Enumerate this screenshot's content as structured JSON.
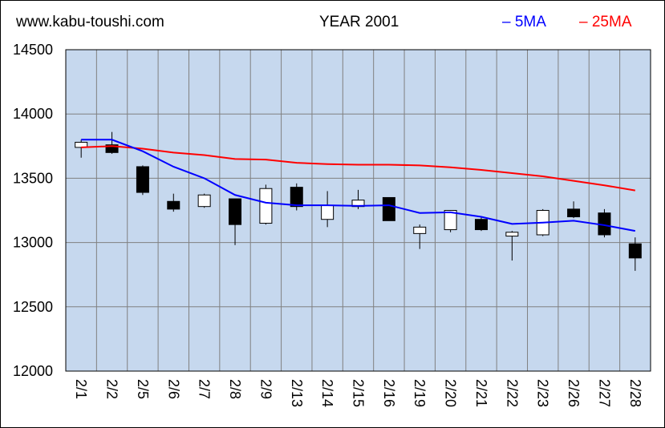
{
  "site_label": "www.kabu-toushi.com",
  "title": "YEAR 2001",
  "legend": {
    "ma5": {
      "label": "5MA",
      "color": "#0000ff"
    },
    "ma25": {
      "label": "25MA",
      "color": "#ff0000"
    }
  },
  "colors": {
    "plot_bg": "#c6d8ee",
    "grid": "#808080",
    "candle_up": "#ffffff",
    "candle_down": "#000000"
  },
  "chart_data": {
    "type": "candlestick",
    "title": "YEAR 2001",
    "categories": [
      "2/1",
      "2/2",
      "2/5",
      "2/6",
      "2/7",
      "2/8",
      "2/9",
      "2/13",
      "2/14",
      "2/15",
      "2/16",
      "2/19",
      "2/20",
      "2/21",
      "2/22",
      "2/23",
      "2/26",
      "2/27",
      "2/28"
    ],
    "ylim": [
      12000,
      14500
    ],
    "yticks": [
      12000,
      12500,
      13000,
      13500,
      14000,
      14500
    ],
    "grid": true,
    "candles": [
      {
        "open": 13740,
        "close": 13780,
        "high": 13800,
        "low": 13660
      },
      {
        "open": 13760,
        "close": 13700,
        "high": 13860,
        "low": 13690
      },
      {
        "open": 13590,
        "close": 13390,
        "high": 13600,
        "low": 13370
      },
      {
        "open": 13320,
        "close": 13260,
        "high": 13380,
        "low": 13240
      },
      {
        "open": 13280,
        "close": 13370,
        "high": 13380,
        "low": 13270
      },
      {
        "open": 13340,
        "close": 13140,
        "high": 13340,
        "low": 12980
      },
      {
        "open": 13150,
        "close": 13420,
        "high": 13450,
        "low": 13140
      },
      {
        "open": 13430,
        "close": 13280,
        "high": 13460,
        "low": 13250
      },
      {
        "open": 13180,
        "close": 13290,
        "high": 13400,
        "low": 13120
      },
      {
        "open": 13280,
        "close": 13330,
        "high": 13410,
        "low": 13260
      },
      {
        "open": 13350,
        "close": 13170,
        "high": 13350,
        "low": 13170
      },
      {
        "open": 13070,
        "close": 13120,
        "high": 13140,
        "low": 12950
      },
      {
        "open": 13100,
        "close": 13250,
        "high": 13250,
        "low": 13080
      },
      {
        "open": 13180,
        "close": 13100,
        "high": 13200,
        "low": 13090
      },
      {
        "open": 13050,
        "close": 13080,
        "high": 13090,
        "low": 12860
      },
      {
        "open": 13060,
        "close": 13250,
        "high": 13260,
        "low": 13050
      },
      {
        "open": 13260,
        "close": 13200,
        "high": 13320,
        "low": 13190
      },
      {
        "open": 13230,
        "close": 13060,
        "high": 13260,
        "low": 13040
      },
      {
        "open": 12990,
        "close": 12880,
        "high": 13040,
        "low": 12780
      }
    ],
    "series": [
      {
        "name": "5MA",
        "color": "#0000ff",
        "values": [
          13800,
          13800,
          13710,
          13590,
          13500,
          13370,
          13310,
          13290,
          13290,
          13285,
          13290,
          13230,
          13235,
          13200,
          13145,
          13155,
          13170,
          13135,
          13090
        ]
      },
      {
        "name": "25MA",
        "color": "#ff0000",
        "values": [
          13740,
          13750,
          13730,
          13700,
          13680,
          13650,
          13645,
          13620,
          13610,
          13605,
          13605,
          13600,
          13585,
          13565,
          13540,
          13515,
          13480,
          13445,
          13405
        ]
      }
    ]
  }
}
